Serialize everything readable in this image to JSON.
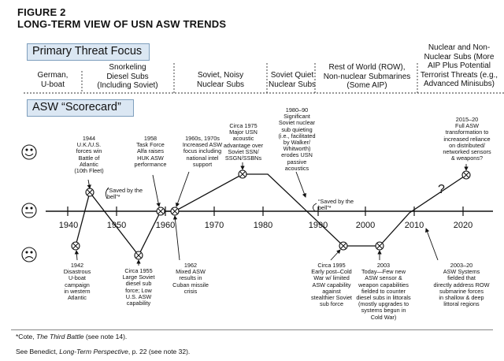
{
  "figure": {
    "label": "FIGURE 2",
    "title": "LONG-TERM VIEW OF USN ASW TRENDS"
  },
  "sections": {
    "threat_focus": "Primary Threat Focus",
    "scorecard": "ASW “Scorecard”"
  },
  "eras": [
    {
      "lines": [
        "German,",
        "U-boat"
      ]
    },
    {
      "lines": [
        "Snorkeling",
        "Diesel Subs",
        "(Including Soviet)"
      ]
    },
    {
      "lines": [
        "Soviet, Noisy",
        "Nuclear Subs"
      ]
    },
    {
      "lines": [
        "Soviet Quiet",
        "Nuclear Subs"
      ]
    },
    {
      "lines": [
        "Rest of World (ROW),",
        "Non-nuclear Submarines",
        "(Some AIP)"
      ]
    },
    {
      "lines": [
        "Nuclear and Non-",
        "Nuclear Subs (More",
        "AIP  Plus Potential",
        "Terrorist Threats (e.g.,",
        "Advanced Minisubs)"
      ]
    }
  ],
  "years": [
    "1940",
    "1950",
    "1960",
    "1970",
    "1980",
    "1990",
    "2000",
    "2010",
    "2020"
  ],
  "saved_label": [
    "“Saved by the",
    "bell”*"
  ],
  "events_top": [
    {
      "lines": [
        "1944",
        "U.K./U.S.",
        "forces win",
        "Battle of",
        "Atlantic",
        "(10th Fleet)"
      ]
    },
    {
      "lines": [
        "1958",
        "Task Force",
        "Alfa raises",
        "HUK ASW",
        "performance"
      ]
    },
    {
      "lines": [
        "1960s, 1970s",
        "Increased ASW",
        "focus including",
        "national intel",
        "support"
      ]
    },
    {
      "lines": [
        "Circa 1975",
        "Major USN",
        "acoustic",
        "advantage over",
        "Soviet SSN/",
        "SSGN/SSBNs"
      ]
    },
    {
      "lines": [
        "1980–90",
        "Significant",
        "Soviet nuclear",
        "sub quieting",
        "(i.e., facilitated",
        "by Walker/",
        "Whitworth)",
        "erodes USN",
        "passive",
        "acoustics"
      ]
    },
    {
      "lines": [
        "2015–20",
        "Full ASW",
        "transformation to",
        "increased reliance",
        "on distributed/",
        "networked sensors",
        "& weapons?"
      ]
    }
  ],
  "events_bottom": [
    {
      "lines": [
        "1942",
        "Disastrous",
        "U-boat",
        "campaign",
        "in western",
        "Atlantic"
      ]
    },
    {
      "lines": [
        "Circa 1955",
        "Large Soviet",
        "diesel sub",
        "force; Low",
        "U.S. ASW",
        "capability"
      ]
    },
    {
      "lines": [
        "1962",
        "Mixed ASW",
        "results in",
        "Cuban missile",
        "crisis"
      ]
    },
    {
      "lines": [
        "Circa 1995",
        "Early post–Cold",
        "War w/ limited",
        "ASW capability",
        "against",
        "stealthier Soviet",
        "sub force"
      ]
    },
    {
      "lines": [
        "2003",
        "Today—Few new",
        "ASW sensor &",
        "weapon capabilities",
        "fielded to counter",
        "diesel subs in littorals",
        "(mostly upgrades to",
        "systems begun in",
        "Cold War)"
      ]
    },
    {
      "lines": [
        "2003–20",
        "ASW Systems",
        "fielded that",
        "directly address ROW",
        "submarine forces",
        "in shallow & deep",
        "littoral regions"
      ]
    }
  ],
  "future_mark": "?",
  "footnote": {
    "prefix": "*Cote, ",
    "book": "The Third Battle",
    "suffix": " (see note 14)."
  },
  "source": {
    "prefix": "See Benedict, ",
    "book": "Long-Term Perspective",
    "suffix": ", p. 22 (see note 32)."
  }
}
